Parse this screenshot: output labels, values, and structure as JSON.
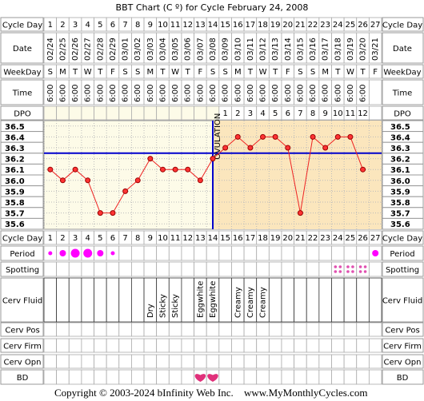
{
  "title": "BBT Chart (C º) for Cycle February 24, 2008",
  "row_labels": [
    "Cycle Day",
    "Date",
    "WeekDay",
    "Time",
    "DPO",
    "Period",
    "Spotting",
    "Cerv Fluid",
    "Cerv Pos",
    "Cerv Firm",
    "Cerv Opn",
    "BD"
  ],
  "days": [
    1,
    2,
    3,
    4,
    5,
    6,
    7,
    8,
    9,
    10,
    11,
    12,
    13,
    14,
    15,
    16,
    17,
    18,
    19,
    20,
    21,
    22,
    23,
    24,
    25,
    26,
    27
  ],
  "dates": [
    "02/24",
    "02/25",
    "02/26",
    "02/27",
    "02/28",
    "02/29",
    "03/01",
    "03/02",
    "03/03",
    "03/04",
    "03/05",
    "03/06",
    "03/07",
    "03/08",
    "03/09",
    "03/10",
    "03/11",
    "03/12",
    "03/13",
    "03/14",
    "03/15",
    "03/16",
    "03/17",
    "03/18",
    "03/19",
    "03/20",
    "03/21"
  ],
  "weekdays": [
    "S",
    "M",
    "T",
    "W",
    "T",
    "F",
    "S",
    "S",
    "M",
    "T",
    "W",
    "T",
    "F",
    "S",
    "S",
    "M",
    "T",
    "W",
    "T",
    "F",
    "S",
    "S",
    "M",
    "T",
    "W",
    "T",
    "F"
  ],
  "times": [
    "6:00",
    "6:00",
    "6:00",
    "6:00",
    "6:00",
    "6:00",
    "6:00",
    "6:00",
    "6:00",
    "6:00",
    "6:00",
    "6:00",
    "6:00",
    "6:00",
    "6:00",
    "6:00",
    "6:00",
    "6:00",
    "6:00",
    "6:00",
    "6:00",
    "6:00",
    "6:00",
    "6:00",
    "6:00",
    "6:00",
    null
  ],
  "dpo": [
    null,
    null,
    null,
    null,
    null,
    null,
    null,
    null,
    null,
    null,
    null,
    null,
    null,
    null,
    1,
    2,
    3,
    4,
    5,
    6,
    7,
    8,
    9,
    10,
    11,
    12,
    null
  ],
  "temperature": {
    "ylim": [
      35.55,
      36.55
    ],
    "yticks": [
      36.5,
      36.4,
      36.3,
      36.2,
      36.1,
      {
        "value": 36.0,
        "label": "36.0"
      },
      35.9,
      35.8,
      35.7,
      35.6
    ],
    "values": [
      36.1,
      36.0,
      36.1,
      36.0,
      35.7,
      35.7,
      35.9,
      36.0,
      36.2,
      36.1,
      36.1,
      36.1,
      36.0,
      36.2,
      36.3,
      36.4,
      36.3,
      36.4,
      36.4,
      36.3,
      35.7,
      36.4,
      36.3,
      36.4,
      36.4,
      36.1,
      null
    ],
    "coverline": 36.25,
    "ovulation_day": 14,
    "ovulation_label": "OVULATION"
  },
  "period": [
    1,
    2,
    3,
    3,
    2,
    1,
    null,
    null,
    null,
    null,
    null,
    null,
    null,
    null,
    null,
    null,
    null,
    null,
    null,
    null,
    null,
    null,
    null,
    null,
    null,
    null,
    2
  ],
  "spotting": [
    null,
    null,
    null,
    null,
    null,
    null,
    null,
    null,
    null,
    null,
    null,
    null,
    null,
    null,
    null,
    null,
    null,
    null,
    null,
    null,
    null,
    null,
    null,
    1,
    1,
    1,
    null
  ],
  "cerv_fluid": [
    null,
    null,
    null,
    null,
    null,
    null,
    null,
    null,
    "Dry",
    "Sticky",
    "Sticky",
    null,
    "Eggwhite",
    "Eggwhite",
    null,
    "Creamy",
    "Creamy",
    "Creamy",
    null,
    null,
    null,
    null,
    null,
    null,
    null,
    null,
    null
  ],
  "bd": [
    null,
    null,
    null,
    null,
    null,
    null,
    null,
    null,
    null,
    null,
    null,
    null,
    1,
    1,
    null,
    null,
    null,
    null,
    null,
    null,
    null,
    null,
    null,
    null,
    null,
    null,
    null
  ],
  "copyright": "Copyright © 2003-2024 bInfinity Web Inc.",
  "website": "www.MyMonthlyCycles.com"
}
